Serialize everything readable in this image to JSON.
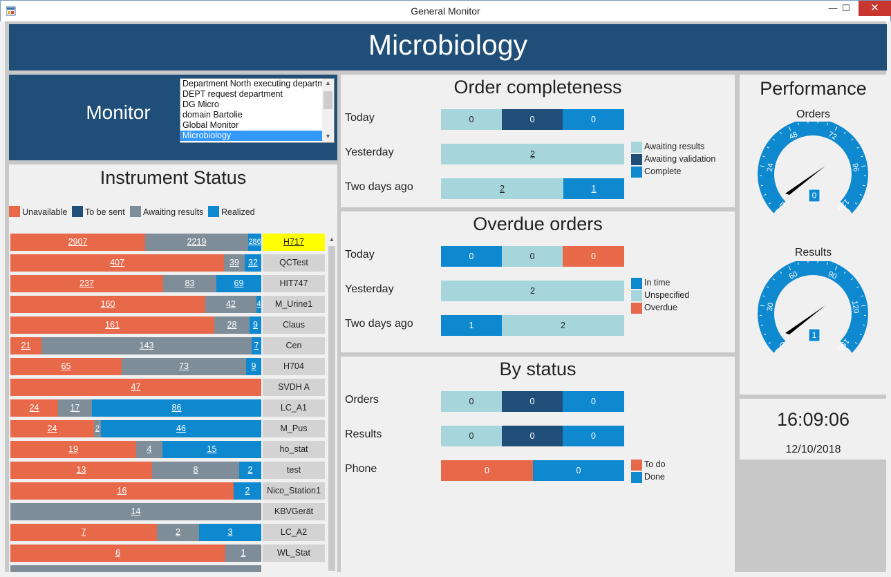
{
  "window": {
    "title": "General Monitor",
    "minimize": "—",
    "maximize": "☐",
    "close": "✕"
  },
  "header": {
    "title": "Microbiology"
  },
  "monitor": {
    "label": "Monitor",
    "options": [
      "Department North executing department",
      "DEPT request department",
      "DG Micro",
      "domain Bartolie",
      "Global Monitor",
      "Microbiology"
    ],
    "selected": "Microbiology"
  },
  "colors": {
    "orange": "#e8694a",
    "navy": "#1f4e79",
    "grey": "#7f8d99",
    "blue": "#0e89d0",
    "light": "#a6d6dc"
  },
  "instrument_status": {
    "title": "Instrument Status",
    "legend": [
      "Unavailable",
      "To be sent",
      "Awaiting results",
      "Realized"
    ],
    "rows": [
      {
        "name": "H717",
        "unavailable": 2907,
        "awaiting": 2219,
        "realized": 286,
        "highlight": true
      },
      {
        "name": "QCTest",
        "unavailable": 407,
        "awaiting": 39,
        "realized": 32
      },
      {
        "name": "HIT747",
        "unavailable": 237,
        "awaiting": 83,
        "realized": 69
      },
      {
        "name": "M_Urine1",
        "unavailable": 160,
        "awaiting": 42,
        "realized": 4
      },
      {
        "name": "Claus",
        "unavailable": 161,
        "awaiting": 28,
        "realized": 9
      },
      {
        "name": "Cen",
        "unavailable": 21,
        "awaiting": 143,
        "realized": 7
      },
      {
        "name": "H704",
        "unavailable": 65,
        "awaiting": 73,
        "realized": 9
      },
      {
        "name": "SVDH A",
        "unavailable": 47,
        "awaiting": null,
        "realized": null
      },
      {
        "name": "LC_A1",
        "unavailable": 24,
        "awaiting": 17,
        "realized": 86
      },
      {
        "name": "M_Pus",
        "unavailable": 24,
        "awaiting": 2,
        "realized": 46
      },
      {
        "name": "ho_stat",
        "unavailable": 19,
        "awaiting": 4,
        "realized": 15
      },
      {
        "name": "test",
        "unavailable": 13,
        "awaiting": 8,
        "realized": 2
      },
      {
        "name": "Nico_Station1",
        "unavailable": 16,
        "awaiting": null,
        "realized": 2
      },
      {
        "name": "KBVGerät",
        "unavailable": null,
        "awaiting": 14,
        "realized": null
      },
      {
        "name": "LC_A2",
        "unavailable": 7,
        "awaiting": 2,
        "realized": 3
      },
      {
        "name": "WL_Stat",
        "unavailable": 6,
        "awaiting": 1,
        "realized": null
      }
    ]
  },
  "order_completeness": {
    "title": "Order completeness",
    "rows": [
      {
        "label": "Today",
        "segments": [
          {
            "value": "0",
            "kind": "light"
          },
          {
            "value": "0",
            "kind": "navy"
          },
          {
            "value": "0",
            "kind": "blue"
          }
        ]
      },
      {
        "label": "Yesterday",
        "segments": [
          {
            "value": "2",
            "kind": "light",
            "underline": true
          }
        ]
      },
      {
        "label": "Two days ago",
        "segments": [
          {
            "value": "2",
            "kind": "light",
            "underline": true
          },
          {
            "value": "1",
            "kind": "blue",
            "underline": true
          }
        ]
      }
    ],
    "legend": [
      {
        "label": "Awaiting results",
        "kind": "light"
      },
      {
        "label": "Awaiting validation",
        "kind": "navy"
      },
      {
        "label": "Complete",
        "kind": "blue"
      }
    ]
  },
  "overdue_orders": {
    "title": "Overdue orders",
    "rows": [
      {
        "label": "Today",
        "segments": [
          {
            "value": "0",
            "kind": "blue"
          },
          {
            "value": "0",
            "kind": "light"
          },
          {
            "value": "0",
            "kind": "orange"
          }
        ]
      },
      {
        "label": "Yesterday",
        "segments": [
          {
            "value": "2",
            "kind": "light"
          }
        ]
      },
      {
        "label": "Two days ago",
        "segments": [
          {
            "value": "1",
            "kind": "blue"
          },
          {
            "value": "2",
            "kind": "light"
          }
        ]
      }
    ],
    "legend": [
      {
        "label": "In time",
        "kind": "blue"
      },
      {
        "label": "Unspecified",
        "kind": "light"
      },
      {
        "label": "Overdue",
        "kind": "orange"
      }
    ]
  },
  "by_status": {
    "title": "By status",
    "rows": [
      {
        "label": "Orders",
        "segments": [
          {
            "value": "0",
            "kind": "light"
          },
          {
            "value": "0",
            "kind": "navy"
          },
          {
            "value": "0",
            "kind": "blue"
          }
        ]
      },
      {
        "label": "Results",
        "segments": [
          {
            "value": "0",
            "kind": "light"
          },
          {
            "value": "0",
            "kind": "navy"
          },
          {
            "value": "0",
            "kind": "blue"
          }
        ]
      },
      {
        "label": "Phone",
        "segments": [
          {
            "value": "0",
            "kind": "orange"
          },
          {
            "value": "0",
            "kind": "blue"
          }
        ]
      }
    ],
    "legend": [
      {
        "label": "To do",
        "kind": "orange"
      },
      {
        "label": "Done",
        "kind": "blue"
      }
    ]
  },
  "performance": {
    "title": "Performance",
    "gauges": [
      {
        "label": "Orders",
        "ticks": [
          "0",
          "24",
          "48",
          "72",
          "96",
          "120"
        ],
        "max": 120,
        "value": 0,
        "value_text": "0"
      },
      {
        "label": "Results",
        "ticks": [
          "0",
          "30",
          "60",
          "90",
          "120",
          "150"
        ],
        "max": 150,
        "value": 1,
        "value_text": "1"
      }
    ]
  },
  "clock": {
    "time": "16:09:06",
    "date": "12/10/2018"
  }
}
